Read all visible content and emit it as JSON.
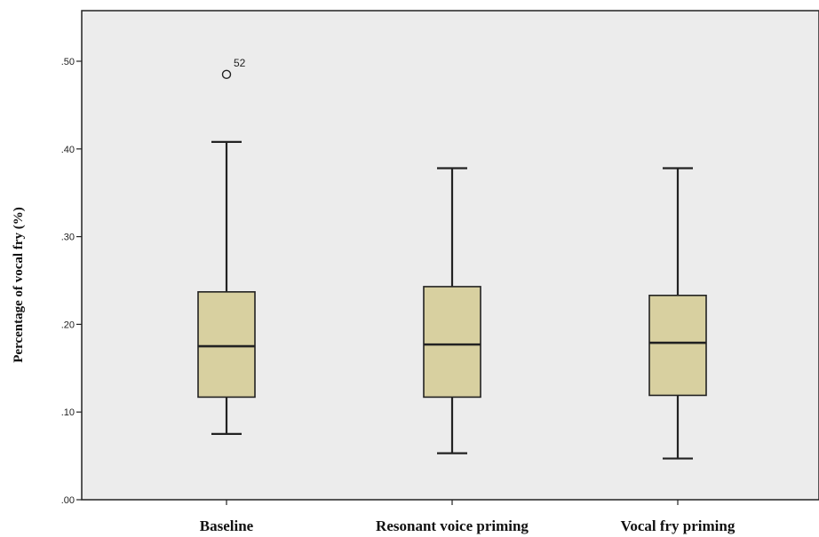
{
  "chart_data": {
    "type": "box",
    "title": "",
    "xlabel": "",
    "ylabel": "Percentage of vocal fry (%)",
    "ylim": [
      0,
      0.55
    ],
    "yticks": [
      0,
      0.1,
      0.2,
      0.3,
      0.4,
      0.5
    ],
    "ytick_labels": [
      ".00",
      ".10",
      ".20",
      ".30",
      ".40",
      ".50"
    ],
    "grid": false,
    "background_color": "#ececec",
    "box_color": "#d8d0a0",
    "categories": [
      "Baseline",
      "Resonant voice priming",
      "Vocal fry priming"
    ],
    "boxes": [
      {
        "category": "Baseline",
        "whisker_low": 0.075,
        "q1": 0.117,
        "median": 0.175,
        "q3": 0.237,
        "whisker_high": 0.408,
        "outliers": [
          {
            "value": 0.485,
            "label": "52"
          }
        ]
      },
      {
        "category": "Resonant voice priming",
        "whisker_low": 0.053,
        "q1": 0.117,
        "median": 0.177,
        "q3": 0.243,
        "whisker_high": 0.378,
        "outliers": []
      },
      {
        "category": "Vocal fry priming",
        "whisker_low": 0.047,
        "q1": 0.119,
        "median": 0.179,
        "q3": 0.233,
        "whisker_high": 0.378,
        "outliers": []
      }
    ]
  }
}
